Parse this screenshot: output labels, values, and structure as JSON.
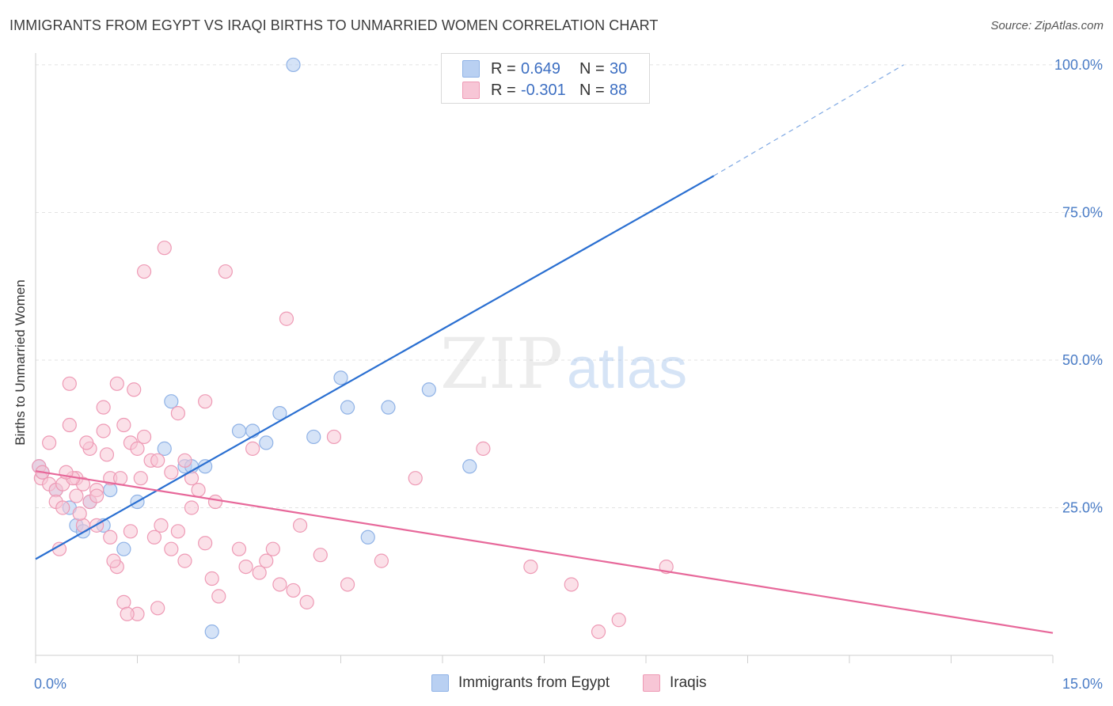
{
  "title": "IMMIGRANTS FROM EGYPT VS IRAQI BIRTHS TO UNMARRIED WOMEN CORRELATION CHART",
  "source": "Source: ZipAtlas.com",
  "watermark": {
    "zip": "ZIP",
    "atlas": "atlas"
  },
  "colors": {
    "blue_fill": "#b9d0f2",
    "blue_stroke": "#8fb2e6",
    "blue_line": "#2a6fd1",
    "pink_fill": "#f7c6d6",
    "pink_stroke": "#ee9ab5",
    "pink_line": "#e7689a",
    "tick_text": "#4a7cc6",
    "grid": "#e3e3e3"
  },
  "legend": {
    "series1": {
      "r_label": "R =",
      "r_value": "0.649",
      "n_label": "N =",
      "n_value": "30"
    },
    "series2": {
      "r_label": "R =",
      "r_value": "-0.301",
      "n_label": "N =",
      "n_value": "88"
    }
  },
  "bottom_legend": {
    "series1": "Immigrants from Egypt",
    "series2": "Iraqis"
  },
  "chart_data": {
    "type": "scatter",
    "title": "IMMIGRANTS FROM EGYPT VS IRAQI BIRTHS TO UNMARRIED WOMEN CORRELATION CHART",
    "xlabel": "",
    "ylabel": "Births to Unmarried Women",
    "xlim": [
      0,
      15
    ],
    "ylim": [
      0,
      102
    ],
    "x_tick_labels": [
      "0.0%",
      "15.0%"
    ],
    "y_tick_labels": [
      "25.0%",
      "50.0%",
      "75.0%",
      "100.0%"
    ],
    "y_ticks": [
      25,
      50,
      75,
      100
    ],
    "grid": true,
    "legend_position": "top-center",
    "series": [
      {
        "name": "Immigrants from Egypt",
        "color": "#b9d0f2",
        "x": [
          0.05,
          0.1,
          0.3,
          0.5,
          0.6,
          0.7,
          0.8,
          1.0,
          1.1,
          1.3,
          1.5,
          1.9,
          2.0,
          2.2,
          2.3,
          2.5,
          2.6,
          3.0,
          3.2,
          3.4,
          3.6,
          3.8,
          4.1,
          4.5,
          4.6,
          4.9,
          5.2,
          5.8,
          6.4,
          8.1
        ],
        "y": [
          32,
          31,
          28,
          25,
          22,
          21,
          26,
          22,
          28,
          18,
          26,
          35,
          43,
          32,
          32,
          32,
          4,
          38,
          38,
          36,
          41,
          100,
          37,
          47,
          42,
          20,
          42,
          45,
          32,
          100
        ],
        "trendline": {
          "x": [
            0,
            10
          ],
          "y": [
            16.3,
            81.2
          ],
          "dashed_to": {
            "x": 12.8,
            "y": 100
          }
        }
      },
      {
        "name": "Iraqis",
        "color": "#f7c6d6",
        "x": [
          0.05,
          0.08,
          0.1,
          0.2,
          0.2,
          0.3,
          0.3,
          0.35,
          0.4,
          0.4,
          0.5,
          0.5,
          0.6,
          0.6,
          0.7,
          0.7,
          0.8,
          0.8,
          0.9,
          0.9,
          1.0,
          1.0,
          1.1,
          1.1,
          1.2,
          1.2,
          1.3,
          1.3,
          1.4,
          1.4,
          1.5,
          1.5,
          1.6,
          1.6,
          1.7,
          1.8,
          1.8,
          1.9,
          2.0,
          2.0,
          2.1,
          2.1,
          2.2,
          2.2,
          2.3,
          2.4,
          2.5,
          2.5,
          2.6,
          2.7,
          2.8,
          3.0,
          3.1,
          3.2,
          3.3,
          3.4,
          3.5,
          3.6,
          3.7,
          3.8,
          4.0,
          4.2,
          4.4,
          4.6,
          5.1,
          5.6,
          6.6,
          7.3,
          7.9,
          8.3,
          8.6,
          9.3,
          1.35,
          1.75,
          2.3,
          0.55,
          0.9,
          1.15,
          1.45,
          3.9,
          2.65,
          1.55,
          0.75,
          0.45,
          0.65,
          1.05,
          1.25,
          1.85
        ],
        "y": [
          32,
          30,
          31,
          36,
          29,
          28,
          26,
          18,
          29,
          25,
          39,
          46,
          27,
          30,
          22,
          29,
          26,
          35,
          28,
          22,
          38,
          42,
          30,
          20,
          46,
          15,
          39,
          9,
          21,
          36,
          35,
          7,
          37,
          65,
          33,
          8,
          33,
          69,
          31,
          18,
          41,
          21,
          33,
          16,
          30,
          28,
          19,
          43,
          13,
          10,
          65,
          18,
          15,
          35,
          14,
          16,
          18,
          12,
          57,
          11,
          9,
          17,
          37,
          12,
          16,
          30,
          35,
          15,
          12,
          4,
          6,
          15,
          7,
          20,
          25,
          30,
          27,
          16,
          45,
          22,
          26,
          30,
          36,
          31,
          24,
          34,
          30,
          22
        ]
      }
    ]
  }
}
